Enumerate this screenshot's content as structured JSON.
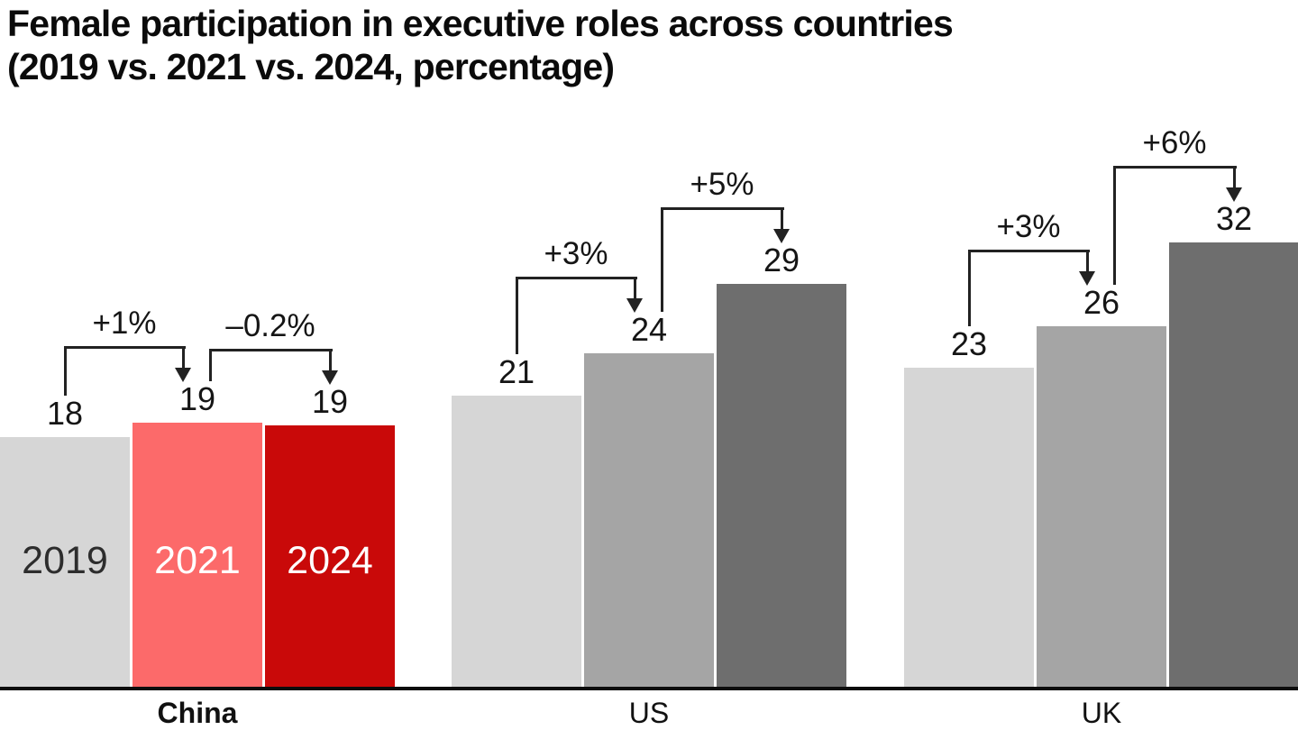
{
  "title": {
    "line1": "Female participation in executive roles across countries",
    "line2": "(2019 vs. 2021 vs. 2024, percentage)"
  },
  "chart_data": {
    "type": "bar",
    "title": "Female participation in executive roles across countries",
    "subtitle": "(2019 vs. 2021 vs. 2024, percentage)",
    "unit": "%",
    "categories": [
      "2019",
      "2021",
      "2024"
    ],
    "grid": false,
    "legend": false,
    "value_labels": true,
    "groups": [
      {
        "country": "China",
        "bold_country_label": true,
        "show_year_labels": true,
        "bars": [
          {
            "year": "2019",
            "value": 18,
            "label": "18",
            "color": "#D6D6D6",
            "year_label_color": "#2D2D2D"
          },
          {
            "year": "2021",
            "value": 19,
            "label": "19",
            "color": "#FC6A6A",
            "year_label_color": "#FFFFFF"
          },
          {
            "year": "2024",
            "value": 18.8,
            "label": "19",
            "color": "#C90909",
            "year_label_color": "#FFFFFF"
          }
        ],
        "deltas": [
          {
            "label": "+1%"
          },
          {
            "label": "–0.2%"
          }
        ]
      },
      {
        "country": "US",
        "bold_country_label": false,
        "show_year_labels": false,
        "bars": [
          {
            "year": "2019",
            "value": 21,
            "label": "21",
            "color": "#D6D6D6"
          },
          {
            "year": "2021",
            "value": 24,
            "label": "24",
            "color": "#A5A5A5"
          },
          {
            "year": "2024",
            "value": 29,
            "label": "29",
            "color": "#6E6E6E"
          }
        ],
        "deltas": [
          {
            "label": "+3%"
          },
          {
            "label": "+5%"
          }
        ]
      },
      {
        "country": "UK",
        "bold_country_label": false,
        "show_year_labels": false,
        "bars": [
          {
            "year": "2019",
            "value": 23,
            "label": "23",
            "color": "#D6D6D6"
          },
          {
            "year": "2021",
            "value": 26,
            "label": "26",
            "color": "#A5A5A5"
          },
          {
            "year": "2024",
            "value": 32,
            "label": "32",
            "color": "#6E6E6E"
          }
        ],
        "deltas": [
          {
            "label": "+3%"
          },
          {
            "label": "+6%"
          }
        ]
      }
    ],
    "colors": {
      "gray_2019": "#D6D6D6",
      "gray_2021": "#A5A5A5",
      "gray_2024": "#6E6E6E",
      "china_2021_highlight": "#FC6A6A",
      "china_2024_highlight": "#C90909",
      "ink": "#151515",
      "bracket_line": "#222222",
      "axis": "#0D0D0D"
    }
  }
}
